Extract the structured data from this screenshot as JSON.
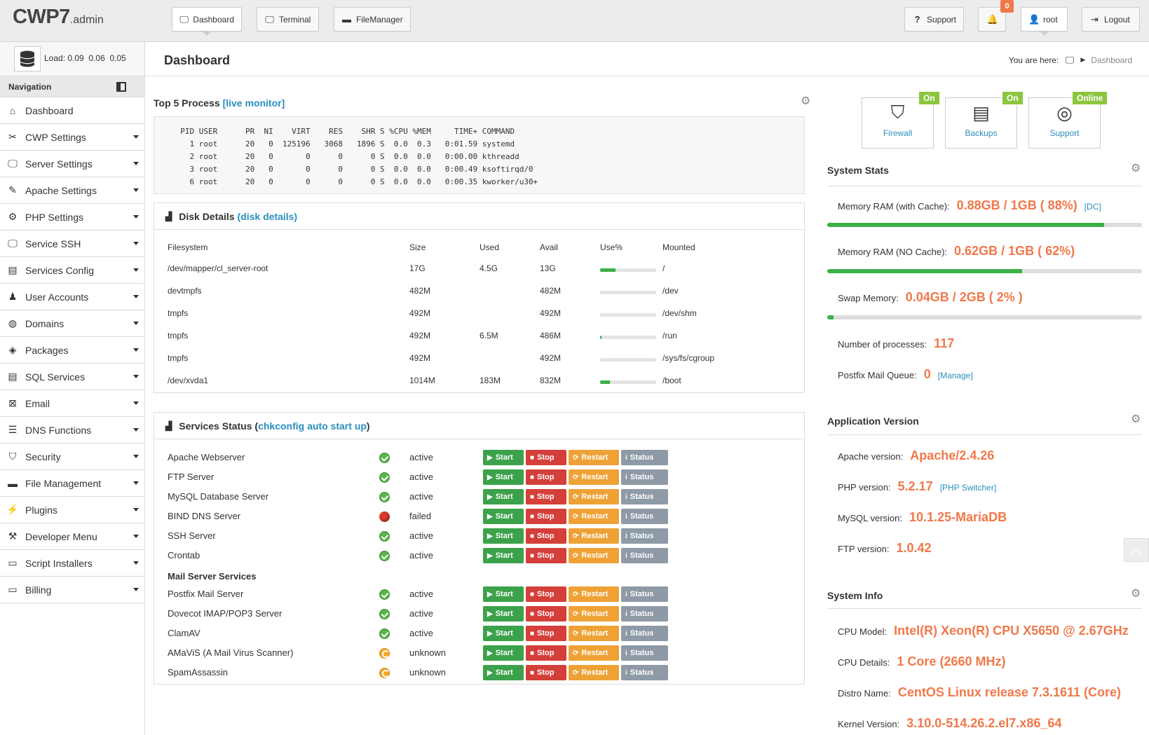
{
  "app": {
    "logo_main": "CWP7",
    "logo_sub": ".admin"
  },
  "topnav": {
    "dashboard": "Dashboard",
    "terminal": "Terminal",
    "filemanager": "FileManager",
    "support": "Support",
    "notifications": "0",
    "user": "root",
    "logout": "Logout"
  },
  "load": {
    "label": "Load:",
    "v1": "0.09",
    "v2": "0.06",
    "v3": "0.05"
  },
  "page": {
    "title": "Dashboard",
    "you_are_here": "You are here:",
    "crumb": "Dashboard"
  },
  "sidebar": {
    "title": "Navigation",
    "items": [
      {
        "label": "Dashboard",
        "icon": "home-icon"
      },
      {
        "label": "CWP Settings",
        "icon": "tools-icon"
      },
      {
        "label": "Server Settings",
        "icon": "monitor-icon"
      },
      {
        "label": "Apache Settings",
        "icon": "feather-icon"
      },
      {
        "label": "PHP Settings",
        "icon": "gear-icon"
      },
      {
        "label": "Service SSH",
        "icon": "monitor-icon"
      },
      {
        "label": "Services Config",
        "icon": "server-icon"
      },
      {
        "label": "User Accounts",
        "icon": "user-icon"
      },
      {
        "label": "Domains",
        "icon": "globe-icon"
      },
      {
        "label": "Packages",
        "icon": "box-icon"
      },
      {
        "label": "SQL Services",
        "icon": "database-icon"
      },
      {
        "label": "Email",
        "icon": "email-icon"
      },
      {
        "label": "DNS Functions",
        "icon": "dns-icon"
      },
      {
        "label": "Security",
        "icon": "shield-icon"
      },
      {
        "label": "File Management",
        "icon": "folder-icon"
      },
      {
        "label": "Plugins",
        "icon": "plug-icon"
      },
      {
        "label": "Developer Menu",
        "icon": "hammer-icon"
      },
      {
        "label": "Script Installers",
        "icon": "new-icon"
      },
      {
        "label": "Billing",
        "icon": "new-icon"
      }
    ]
  },
  "top_process": {
    "title": "Top 5 Process",
    "link": "[live monitor]",
    "header": "  PID USER      PR  NI    VIRT    RES    SHR S %CPU %MEM     TIME+ COMMAND",
    "rows": [
      "    1 root      20   0  125196   3068   1896 S  0.0  0.3   0:01.59 systemd",
      "    2 root      20   0       0      0      0 S  0.0  0.0   0:00.00 kthreadd",
      "    3 root      20   0       0      0      0 S  0.0  0.0   0:00.49 ksoftirqd/0",
      "    6 root      20   0       0      0      0 S  0.0  0.0   0:00.35 kworker/u30+"
    ]
  },
  "disk": {
    "title": "Disk Details",
    "link": "(disk details)",
    "headers": {
      "fs": "Filesystem",
      "size": "Size",
      "used": "Used",
      "avail": "Avail",
      "use": "Use%",
      "mounted": "Mounted"
    },
    "rows": [
      {
        "fs": "/dev/mapper/cl_server-root",
        "size": "17G",
        "used": "4.5G",
        "avail": "13G",
        "pct": 27,
        "mounted": "/"
      },
      {
        "fs": "devtmpfs",
        "size": "482M",
        "used": "",
        "avail": "482M",
        "pct": 0,
        "mounted": "/dev"
      },
      {
        "fs": "tmpfs",
        "size": "492M",
        "used": "",
        "avail": "492M",
        "pct": 0,
        "mounted": "/dev/shm"
      },
      {
        "fs": "tmpfs",
        "size": "492M",
        "used": "6.5M",
        "avail": "486M",
        "pct": 2,
        "mounted": "/run"
      },
      {
        "fs": "tmpfs",
        "size": "492M",
        "used": "",
        "avail": "492M",
        "pct": 0,
        "mounted": "/sys/fs/cgroup"
      },
      {
        "fs": "/dev/xvda1",
        "size": "1014M",
        "used": "183M",
        "avail": "832M",
        "pct": 18,
        "mounted": "/boot"
      }
    ]
  },
  "services": {
    "title": "Services Status",
    "link_open": "(",
    "link": "chkconfig auto start up",
    "link_close": ")",
    "buttons": {
      "start": "Start",
      "stop": "Stop",
      "restart": "Restart",
      "status": "Status"
    },
    "mail_heading": "Mail Server Services",
    "rows": [
      {
        "name": "Apache Webserver",
        "state": "active",
        "kind": "ok"
      },
      {
        "name": "FTP Server",
        "state": "active",
        "kind": "ok"
      },
      {
        "name": "MySQL Database Server",
        "state": "active",
        "kind": "ok"
      },
      {
        "name": "BIND DNS Server",
        "state": "failed",
        "kind": "fail"
      },
      {
        "name": "SSH Server",
        "state": "active",
        "kind": "ok"
      },
      {
        "name": "Crontab",
        "state": "active",
        "kind": "ok"
      },
      {
        "name": "Postfix Mail Server",
        "state": "active",
        "kind": "ok"
      },
      {
        "name": "Dovecot IMAP/POP3 Server",
        "state": "active",
        "kind": "ok"
      },
      {
        "name": "ClamAV",
        "state": "active",
        "kind": "ok"
      },
      {
        "name": "AMaViS (A Mail Virus Scanner)",
        "state": "unknown",
        "kind": "unk"
      },
      {
        "name": "SpamAssassin",
        "state": "unknown",
        "kind": "unk"
      }
    ]
  },
  "quick": [
    {
      "label": "Firewall",
      "tag": "On"
    },
    {
      "label": "Backups",
      "tag": "On"
    },
    {
      "label": "Support",
      "tag": "Online"
    }
  ],
  "system_stats": {
    "title": "System Stats",
    "mem_cache_label": "Memory RAM (with Cache):",
    "mem_cache_val": "0.88GB / 1GB ( 88%)",
    "mem_cache_link": "[DC]",
    "mem_cache_pct": 88,
    "mem_nocache_label": "Memory RAM (NO Cache):",
    "mem_nocache_val": "0.62GB / 1GB ( 62%)",
    "mem_nocache_pct": 62,
    "swap_label": "Swap Memory:",
    "swap_val": "0.04GB / 2GB ( 2% )",
    "swap_pct": 2,
    "proc_label": "Number of processes:",
    "proc_val": "117",
    "queue_label": "Postfix Mail Queue:",
    "queue_val": "0",
    "queue_link": "[Manage]"
  },
  "app_version": {
    "title": "Application Version",
    "apache_label": "Apache version:",
    "apache_val": "Apache/2.4.26",
    "php_label": "PHP version:",
    "php_val": "5.2.17",
    "php_link": "[PHP Switcher]",
    "mysql_label": "MySQL version:",
    "mysql_val": "10.1.25-MariaDB",
    "ftp_label": "FTP version:",
    "ftp_val": "1.0.42"
  },
  "system_info": {
    "title": "System Info",
    "cpu_label": "CPU Model:",
    "cpu_val": "Intel(R) Xeon(R) CPU X5650 @ 2.67GHz",
    "cpud_label": "CPU Details:",
    "cpud_val": "1 Core (2660 MHz)",
    "distro_label": "Distro Name:",
    "distro_val": "CentOS Linux release 7.3.1611 (Core)",
    "kernel_label": "Kernel Version:",
    "kernel_val": "3.10.0-514.26.2.el7.x86_64"
  },
  "colors": {
    "accent": "#f0784a",
    "link": "#2a8fbd",
    "green": "#3ba24a",
    "red": "#d43f3a",
    "orange": "#eea236",
    "grey": "#8e9aa5",
    "on_tag": "#8cc63f"
  }
}
